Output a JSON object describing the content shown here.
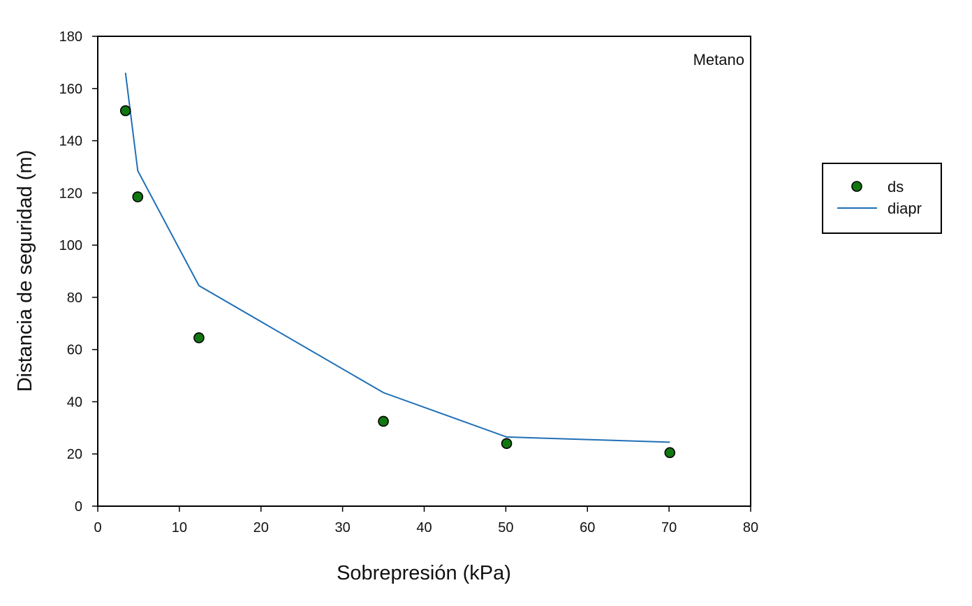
{
  "chart_data": {
    "type": "scatter",
    "xlabel": "Sobrepresión (kPa)",
    "ylabel": "Distancia de seguridad (m)",
    "annotation": "Metano",
    "xlim": [
      0,
      80
    ],
    "ylim": [
      0,
      180
    ],
    "x_ticks": [
      0,
      10,
      20,
      30,
      40,
      50,
      60,
      70,
      80
    ],
    "y_ticks": [
      0,
      20,
      40,
      60,
      80,
      100,
      120,
      140,
      160,
      180
    ],
    "grid": false,
    "legend_position": "right",
    "series": [
      {
        "name": "ds",
        "kind": "scatter",
        "color": "#117711",
        "points": [
          {
            "x": 3.4,
            "y": 151.5
          },
          {
            "x": 4.9,
            "y": 118.5
          },
          {
            "x": 12.4,
            "y": 64.5
          },
          {
            "x": 35.0,
            "y": 32.5
          },
          {
            "x": 50.1,
            "y": 24.0
          },
          {
            "x": 70.1,
            "y": 20.5
          }
        ]
      },
      {
        "name": "diapr",
        "kind": "line",
        "color": "#1f6fb5",
        "points": [
          {
            "x": 3.4,
            "y": 166.0
          },
          {
            "x": 4.9,
            "y": 128.5
          },
          {
            "x": 12.4,
            "y": 84.5
          },
          {
            "x": 35.0,
            "y": 43.5
          },
          {
            "x": 50.1,
            "y": 26.5
          },
          {
            "x": 70.1,
            "y": 24.5
          }
        ]
      }
    ]
  }
}
